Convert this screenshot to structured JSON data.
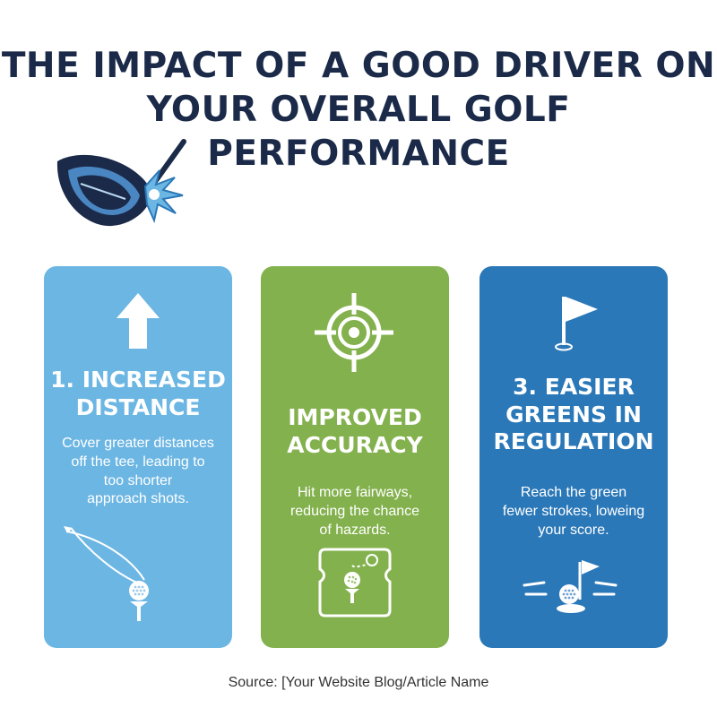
{
  "title": {
    "line1": "THE IMPACT OF A GOOD DRIVER ON",
    "line2": "YOUR OVERALL GOLF PERFORMANCE"
  },
  "colors": {
    "navy": "#1b2a48",
    "card1": "#6cb6e3",
    "card2": "#83b14d",
    "card3": "#2b78b8"
  },
  "header_icon": "golf-driver-impact-icon",
  "cards": [
    {
      "icon": "arrow-up-icon",
      "heading": [
        "1. INCREASED",
        "DISTANCE"
      ],
      "body": [
        "Cover greater distances",
        "off the tee, leading to",
        "too shorter",
        "approach shots."
      ],
      "bottom_icon": "ball-trajectory-icon"
    },
    {
      "icon": "target-crosshair-icon",
      "heading": [
        "IMPROVED",
        "ACCURACY"
      ],
      "body": [
        "Hit more fairways,",
        "reducing the chance",
        "of hazards."
      ],
      "bottom_icon": "fairway-map-icon"
    },
    {
      "icon": "golf-flag-icon",
      "heading": [
        "3. EASIER",
        "GREENS IN",
        "REGULATION"
      ],
      "body": [
        "Reach the green",
        "fewer strokes, loweing",
        "your score."
      ],
      "bottom_icon": "ball-at-hole-icon"
    }
  ],
  "source": "Source: [Your Website Blog/Article Name"
}
